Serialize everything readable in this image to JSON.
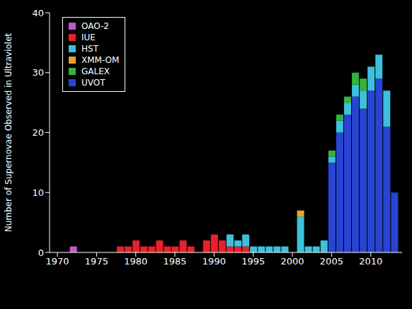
{
  "chart_data": {
    "type": "bar",
    "stacked": true,
    "legend": "upper left",
    "grid": false,
    "y_label": "Number of Supernovae Observed in Ultraviolet",
    "x": [
      1970,
      1971,
      1972,
      1973,
      1974,
      1975,
      1976,
      1977,
      1978,
      1979,
      1980,
      1981,
      1982,
      1983,
      1984,
      1985,
      1986,
      1987,
      1988,
      1989,
      1990,
      1991,
      1992,
      1993,
      1994,
      1995,
      1996,
      1997,
      1998,
      1999,
      2000,
      2001,
      2002,
      2003,
      2004,
      2005,
      2006,
      2007,
      2008,
      2009,
      2010,
      2011,
      2012,
      2013
    ],
    "xlim": [
      1969,
      2014
    ],
    "xticks": [
      1970,
      1975,
      1980,
      1985,
      1990,
      1995,
      2000,
      2005,
      2010
    ],
    "ylim": [
      0,
      40
    ],
    "yticks": [
      0,
      10,
      20,
      30,
      40
    ],
    "series": [
      {
        "name": "OAO-2",
        "color": "#c05ac8",
        "values": [
          0,
          0,
          1,
          0,
          0,
          0,
          0,
          0,
          0,
          0,
          0,
          0,
          0,
          0,
          0,
          0,
          0,
          0,
          0,
          0,
          0,
          0,
          0,
          0,
          0,
          0,
          0,
          0,
          0,
          0,
          0,
          0,
          0,
          0,
          0,
          0,
          0,
          0,
          0,
          0,
          0,
          0,
          0,
          0
        ]
      },
      {
        "name": "IUE",
        "color": "#e8202a",
        "values": [
          0,
          0,
          0,
          0,
          0,
          0,
          0,
          0,
          1,
          1,
          2,
          1,
          1,
          2,
          1,
          1,
          2,
          1,
          0,
          2,
          3,
          2,
          1,
          1,
          1,
          0,
          0,
          0,
          0,
          0,
          0,
          0,
          0,
          0,
          0,
          0,
          0,
          0,
          0,
          0,
          0,
          0,
          0,
          0
        ]
      },
      {
        "name": "HST",
        "color": "#3cc0dc",
        "values": [
          0,
          0,
          0,
          0,
          0,
          0,
          0,
          0,
          0,
          0,
          0,
          0,
          0,
          0,
          0,
          0,
          0,
          0,
          0,
          0,
          0,
          0,
          2,
          1,
          2,
          1,
          1,
          1,
          1,
          1,
          0,
          6,
          1,
          1,
          2,
          1,
          2,
          2,
          2,
          3,
          4,
          4,
          6,
          0
        ]
      },
      {
        "name": "XMM-OM",
        "color": "#f0a028",
        "values": [
          0,
          0,
          0,
          0,
          0,
          0,
          0,
          0,
          0,
          0,
          0,
          0,
          0,
          0,
          0,
          0,
          0,
          0,
          0,
          0,
          0,
          0,
          0,
          0,
          0,
          0,
          0,
          0,
          0,
          0,
          0,
          1,
          0,
          0,
          0,
          0,
          0,
          0,
          0,
          0,
          0,
          0,
          0,
          0
        ]
      },
      {
        "name": "GALEX",
        "color": "#32b43c",
        "values": [
          0,
          0,
          0,
          0,
          0,
          0,
          0,
          0,
          0,
          0,
          0,
          0,
          0,
          0,
          0,
          0,
          0,
          0,
          0,
          0,
          0,
          0,
          0,
          0,
          0,
          0,
          0,
          0,
          0,
          0,
          0,
          0,
          0,
          0,
          0,
          1,
          1,
          1,
          2,
          2,
          0,
          0,
          0,
          0
        ]
      },
      {
        "name": "UVOT",
        "color": "#2844d2",
        "values": [
          0,
          0,
          0,
          0,
          0,
          0,
          0,
          0,
          0,
          0,
          0,
          0,
          0,
          0,
          0,
          0,
          0,
          0,
          0,
          0,
          0,
          0,
          0,
          0,
          0,
          0,
          0,
          0,
          0,
          0,
          0,
          0,
          0,
          0,
          0,
          15,
          20,
          23,
          26,
          24,
          27,
          29,
          21,
          10
        ]
      }
    ]
  }
}
